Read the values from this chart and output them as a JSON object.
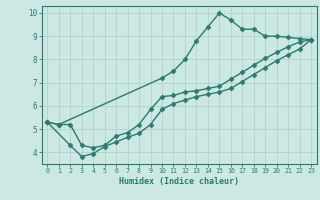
{
  "line1": {
    "x": [
      0,
      1,
      10,
      11,
      12,
      13,
      14,
      15,
      16,
      17,
      18,
      19,
      20,
      21,
      22,
      23
    ],
    "y": [
      5.3,
      5.2,
      7.2,
      7.5,
      8.0,
      8.8,
      9.4,
      10.0,
      9.7,
      9.3,
      9.3,
      9.0,
      9.0,
      8.95,
      8.9,
      8.85
    ]
  },
  "line2": {
    "x": [
      0,
      1,
      2,
      3,
      4,
      5,
      6,
      7,
      8,
      9,
      10,
      11,
      12,
      13,
      14,
      15,
      16,
      17,
      18,
      19,
      20,
      21,
      22,
      23
    ],
    "y": [
      5.3,
      5.2,
      5.2,
      4.3,
      4.2,
      4.3,
      4.7,
      4.85,
      5.2,
      5.85,
      6.4,
      6.45,
      6.6,
      6.65,
      6.75,
      6.85,
      7.15,
      7.45,
      7.75,
      8.05,
      8.3,
      8.55,
      8.75,
      8.85
    ]
  },
  "line3": {
    "x": [
      0,
      2,
      3,
      4,
      5,
      6,
      7,
      8,
      9,
      10,
      11,
      12,
      13,
      14,
      15,
      16,
      17,
      18,
      19,
      20,
      21,
      22,
      23
    ],
    "y": [
      5.3,
      4.3,
      3.82,
      3.95,
      4.25,
      4.45,
      4.65,
      4.82,
      5.2,
      5.85,
      6.1,
      6.25,
      6.4,
      6.5,
      6.6,
      6.75,
      7.05,
      7.35,
      7.65,
      7.95,
      8.2,
      8.45,
      8.85
    ]
  },
  "color": "#2d7a6e",
  "bg_color": "#cce8e3",
  "grid_color": "#b5d5cf",
  "xlim": [
    -0.5,
    23.5
  ],
  "ylim": [
    3.5,
    10.3
  ],
  "xticks": [
    0,
    1,
    2,
    3,
    4,
    5,
    6,
    7,
    8,
    9,
    10,
    11,
    12,
    13,
    14,
    15,
    16,
    17,
    18,
    19,
    20,
    21,
    22,
    23
  ],
  "yticks": [
    4,
    5,
    6,
    7,
    8,
    9,
    10
  ],
  "xlabel": "Humidex (Indice chaleur)",
  "marker": "D",
  "markersize": 2.5,
  "linewidth": 1.0
}
